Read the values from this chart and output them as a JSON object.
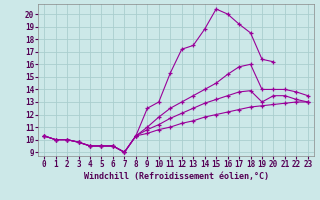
{
  "title": "",
  "xlabel": "Windchill (Refroidissement éolien,°C)",
  "bg_color": "#cce8e8",
  "grid_color": "#aacece",
  "line_color": "#990099",
  "xlim": [
    -0.5,
    23.5
  ],
  "ylim": [
    8.7,
    20.8
  ],
  "xticks": [
    0,
    1,
    2,
    3,
    4,
    5,
    6,
    7,
    8,
    9,
    10,
    11,
    12,
    13,
    14,
    15,
    16,
    17,
    18,
    19,
    20,
    21,
    22,
    23
  ],
  "yticks": [
    9,
    10,
    11,
    12,
    13,
    14,
    15,
    16,
    17,
    18,
    19,
    20
  ],
  "lines": [
    {
      "x": [
        0,
        1,
        2,
        3,
        4,
        5,
        6,
        7,
        8,
        9,
        10,
        11,
        12,
        13,
        14,
        15,
        16,
        17,
        18,
        19,
        20
      ],
      "y": [
        10.3,
        10.0,
        10.0,
        9.8,
        9.5,
        9.5,
        9.5,
        9.0,
        10.3,
        12.5,
        13.0,
        15.3,
        17.2,
        17.5,
        18.8,
        20.4,
        20.0,
        19.2,
        18.5,
        16.4,
        16.2
      ]
    },
    {
      "x": [
        0,
        1,
        2,
        3,
        4,
        5,
        6,
        7,
        8,
        9,
        10,
        11,
        12,
        13,
        14,
        15,
        16,
        17,
        18,
        19,
        20,
        21,
        22,
        23
      ],
      "y": [
        10.3,
        10.0,
        10.0,
        9.8,
        9.5,
        9.5,
        9.5,
        9.0,
        10.3,
        11.0,
        11.8,
        12.5,
        13.0,
        13.5,
        14.0,
        14.5,
        15.2,
        15.8,
        16.0,
        14.0,
        14.0,
        14.0,
        13.8,
        13.5
      ]
    },
    {
      "x": [
        0,
        1,
        2,
        3,
        4,
        5,
        6,
        7,
        8,
        9,
        10,
        11,
        12,
        13,
        14,
        15,
        16,
        17,
        18,
        19,
        20,
        21,
        22,
        23
      ],
      "y": [
        10.3,
        10.0,
        10.0,
        9.8,
        9.5,
        9.5,
        9.5,
        9.0,
        10.3,
        10.8,
        11.2,
        11.7,
        12.1,
        12.5,
        12.9,
        13.2,
        13.5,
        13.8,
        13.9,
        13.0,
        13.5,
        13.5,
        13.2,
        13.0
      ]
    },
    {
      "x": [
        0,
        1,
        2,
        3,
        4,
        5,
        6,
        7,
        8,
        9,
        10,
        11,
        12,
        13,
        14,
        15,
        16,
        17,
        18,
        19,
        20,
        21,
        22,
        23
      ],
      "y": [
        10.3,
        10.0,
        10.0,
        9.8,
        9.5,
        9.5,
        9.5,
        9.0,
        10.3,
        10.5,
        10.8,
        11.0,
        11.3,
        11.5,
        11.8,
        12.0,
        12.2,
        12.4,
        12.6,
        12.7,
        12.8,
        12.9,
        13.0,
        13.0
      ]
    }
  ]
}
